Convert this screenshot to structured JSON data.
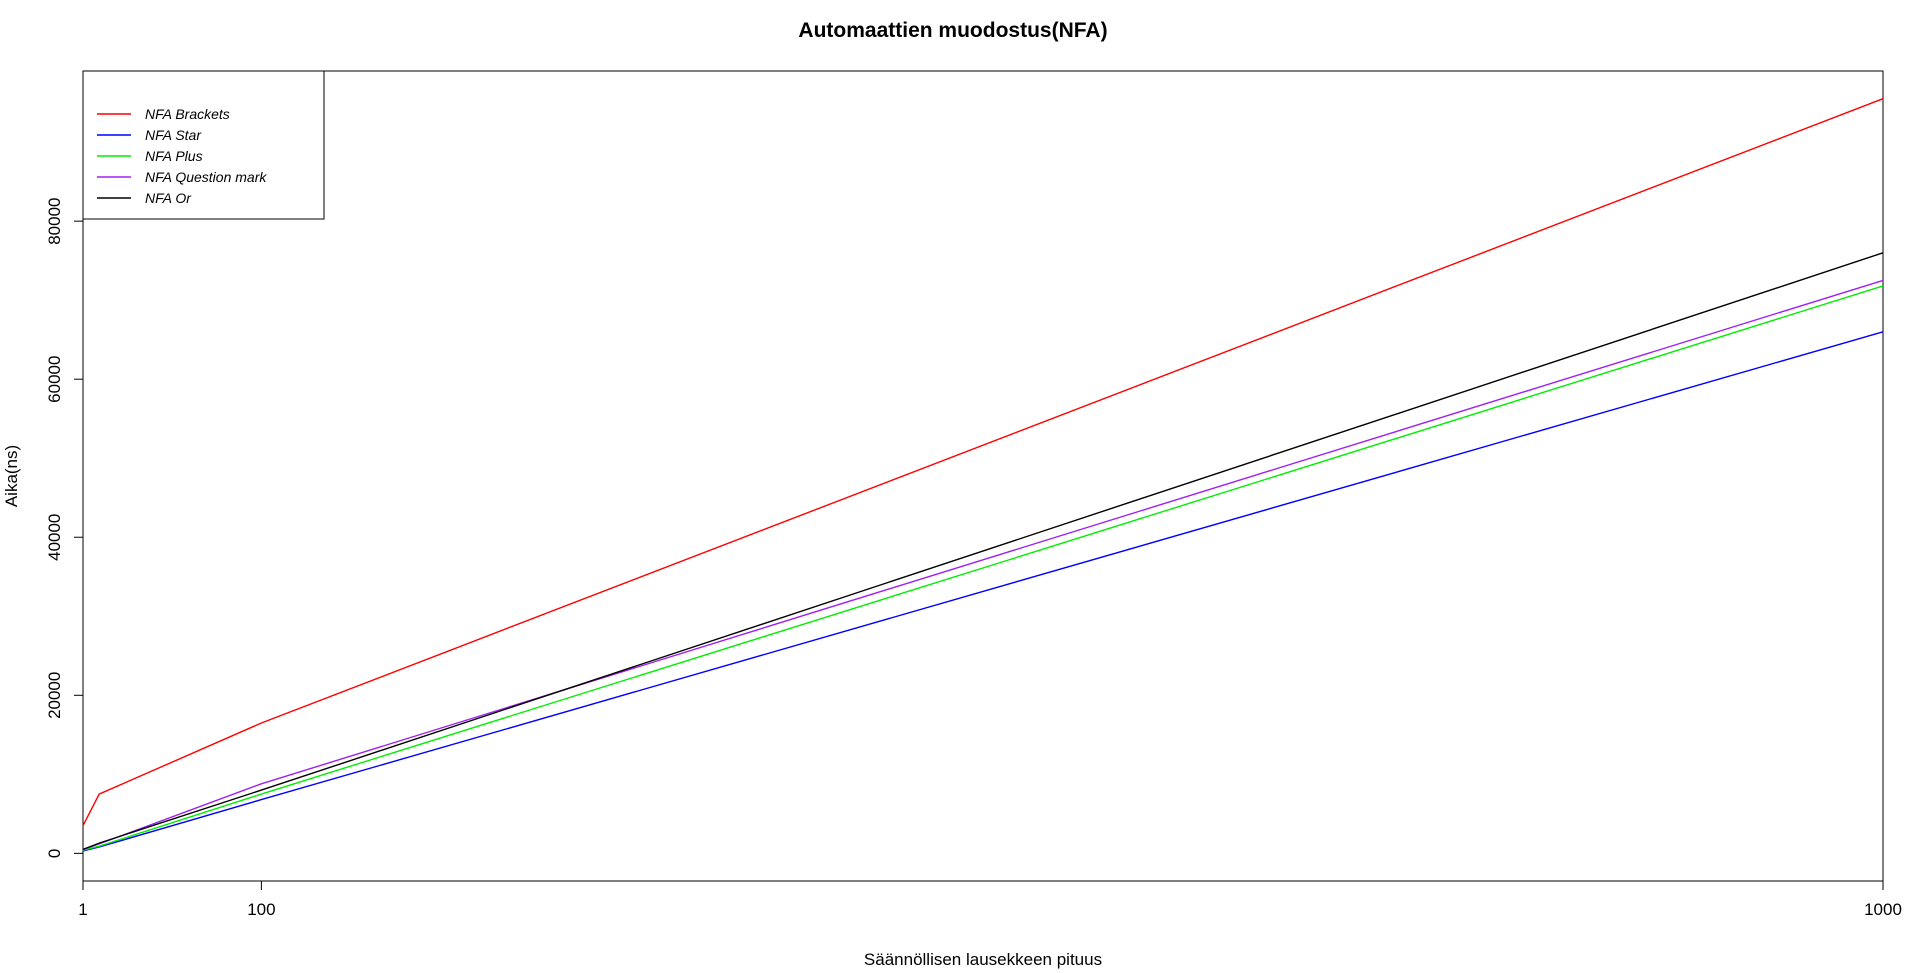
{
  "chart_data": {
    "type": "line",
    "title": "Automaattien muodostus(NFA)",
    "xlabel": "Säännöllisen lausekkeen pituus",
    "ylabel": "Aika(ns)",
    "xlim": [
      1,
      1000
    ],
    "ylim": [
      -3500,
      99000
    ],
    "x_ticks": [
      1,
      100,
      1000
    ],
    "x_tick_labels": [
      "1",
      "100",
      "1000"
    ],
    "y_ticks": [
      0,
      20000,
      40000,
      60000,
      80000
    ],
    "y_tick_labels": [
      "0",
      "20000",
      "40000",
      "60000",
      "80000"
    ],
    "grid": false,
    "legend_position": "top-left",
    "series": [
      {
        "name": "NFA Brackets",
        "color": "#ff0000",
        "x": [
          1,
          10,
          100,
          1000
        ],
        "y": [
          3500,
          7500,
          16500,
          95500
        ]
      },
      {
        "name": "NFA Star",
        "color": "#0000ff",
        "x": [
          1,
          10,
          100,
          1000
        ],
        "y": [
          300,
          800,
          6800,
          66000
        ]
      },
      {
        "name": "NFA Plus",
        "color": "#00ee00",
        "x": [
          1,
          10,
          100,
          1000
        ],
        "y": [
          400,
          900,
          7500,
          71800
        ]
      },
      {
        "name": "NFA Question mark",
        "color": "#a020f0",
        "x": [
          1,
          10,
          100,
          1000
        ],
        "y": [
          500,
          1200,
          8800,
          72500
        ]
      },
      {
        "name": "NFA Or",
        "color": "#000000",
        "x": [
          1,
          10,
          100,
          1000
        ],
        "y": [
          500,
          1300,
          8000,
          76000
        ]
      }
    ]
  }
}
